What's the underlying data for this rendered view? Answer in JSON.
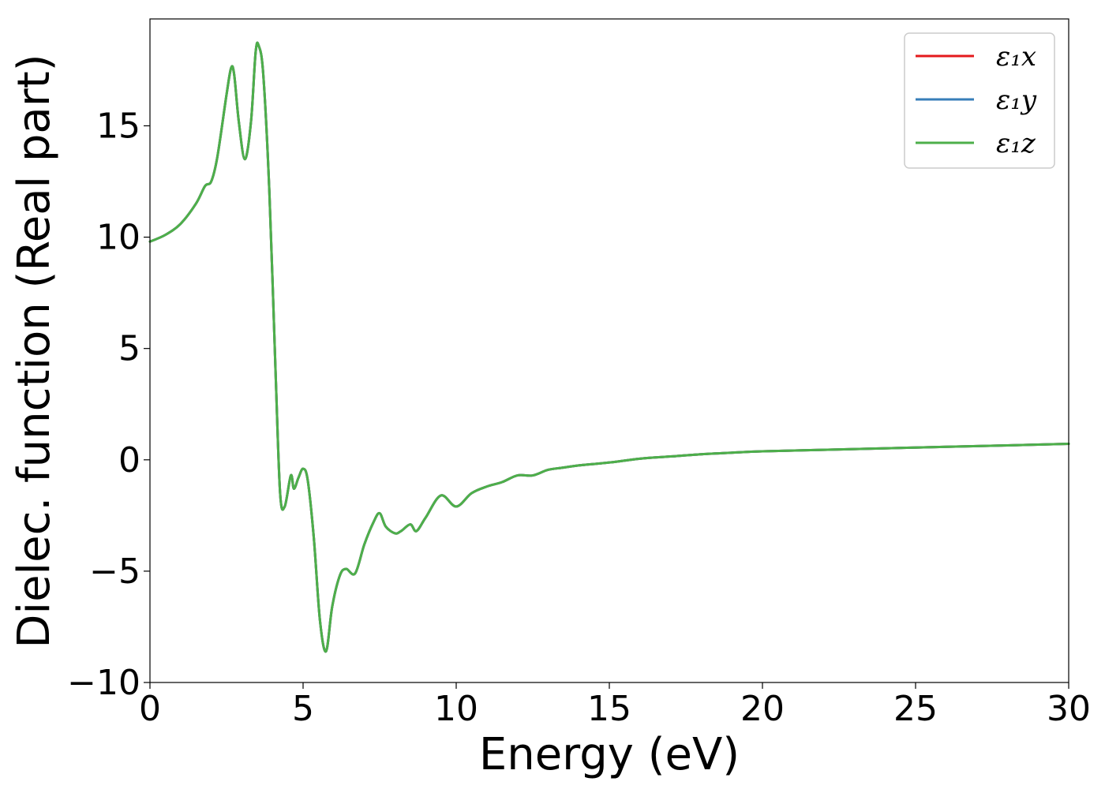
{
  "chart_data": {
    "type": "line",
    "xlabel": "Energy (eV)",
    "ylabel": "Dielec. function (Real part)",
    "xlim": [
      0,
      30
    ],
    "ylim": [
      -10,
      19.8
    ],
    "xticks": [
      0,
      5,
      10,
      15,
      20,
      25,
      30
    ],
    "xtick_labels": [
      "0",
      "5",
      "10",
      "15",
      "20",
      "25",
      "30"
    ],
    "yticks": [
      -10,
      -5,
      0,
      5,
      10,
      15
    ],
    "ytick_labels": [
      "−10",
      "−5",
      "0",
      "5",
      "10",
      "15"
    ],
    "grid": false,
    "legend_position": "top-right",
    "x": [
      0,
      0.5,
      1.0,
      1.5,
      1.8,
      2.0,
      2.2,
      2.5,
      2.65,
      2.75,
      2.9,
      3.1,
      3.3,
      3.45,
      3.55,
      3.7,
      3.9,
      4.1,
      4.25,
      4.4,
      4.6,
      4.7,
      4.85,
      5.0,
      5.15,
      5.35,
      5.55,
      5.75,
      5.95,
      6.2,
      6.4,
      6.7,
      7.0,
      7.3,
      7.5,
      7.7,
      8.0,
      8.2,
      8.5,
      8.7,
      9.0,
      9.5,
      10.0,
      10.5,
      11.0,
      11.5,
      12.0,
      12.5,
      13.0,
      13.5,
      14.0,
      15.0,
      16.0,
      17.0,
      18.0,
      19.0,
      20.0,
      22.0,
      25.0,
      28.0,
      30.0
    ],
    "series": [
      {
        "name": "ε₁x",
        "color": "#e41a1c",
        "y": [
          9.8,
          10.1,
          10.6,
          11.5,
          12.3,
          12.5,
          13.6,
          16.4,
          17.6,
          17.3,
          15.2,
          13.5,
          15.2,
          18.3,
          18.6,
          17.3,
          12.0,
          4.0,
          -1.5,
          -2.1,
          -0.7,
          -1.3,
          -0.8,
          -0.4,
          -0.9,
          -3.5,
          -7.2,
          -8.6,
          -6.6,
          -5.2,
          -4.9,
          -5.1,
          -3.8,
          -2.8,
          -2.4,
          -3.0,
          -3.3,
          -3.2,
          -2.9,
          -3.2,
          -2.6,
          -1.6,
          -2.1,
          -1.5,
          -1.2,
          -1.0,
          -0.7,
          -0.7,
          -0.45,
          -0.35,
          -0.25,
          -0.12,
          0.05,
          0.15,
          0.25,
          0.32,
          0.38,
          0.45,
          0.55,
          0.65,
          0.72
        ]
      },
      {
        "name": "ε₁y",
        "color": "#377eb8",
        "y": [
          9.8,
          10.1,
          10.6,
          11.5,
          12.3,
          12.5,
          13.6,
          16.4,
          17.6,
          17.3,
          15.2,
          13.5,
          15.2,
          18.3,
          18.6,
          17.3,
          12.0,
          4.0,
          -1.5,
          -2.1,
          -0.7,
          -1.3,
          -0.8,
          -0.4,
          -0.9,
          -3.5,
          -7.2,
          -8.6,
          -6.6,
          -5.2,
          -4.9,
          -5.1,
          -3.8,
          -2.8,
          -2.4,
          -3.0,
          -3.3,
          -3.2,
          -2.9,
          -3.2,
          -2.6,
          -1.6,
          -2.1,
          -1.5,
          -1.2,
          -1.0,
          -0.7,
          -0.7,
          -0.45,
          -0.35,
          -0.25,
          -0.12,
          0.05,
          0.15,
          0.25,
          0.32,
          0.38,
          0.45,
          0.55,
          0.65,
          0.72
        ]
      },
      {
        "name": "ε₁z",
        "color": "#4daf4a",
        "y": [
          9.8,
          10.1,
          10.6,
          11.5,
          12.3,
          12.5,
          13.6,
          16.4,
          17.6,
          17.3,
          15.2,
          13.5,
          15.2,
          18.3,
          18.6,
          17.3,
          12.0,
          4.0,
          -1.5,
          -2.1,
          -0.7,
          -1.3,
          -0.8,
          -0.4,
          -0.9,
          -3.5,
          -7.2,
          -8.6,
          -6.6,
          -5.2,
          -4.9,
          -5.1,
          -3.8,
          -2.8,
          -2.4,
          -3.0,
          -3.3,
          -3.2,
          -2.9,
          -3.2,
          -2.6,
          -1.6,
          -2.1,
          -1.5,
          -1.2,
          -1.0,
          -0.7,
          -0.7,
          -0.45,
          -0.35,
          -0.25,
          -0.12,
          0.05,
          0.15,
          0.25,
          0.32,
          0.38,
          0.45,
          0.55,
          0.65,
          0.72
        ]
      }
    ]
  }
}
